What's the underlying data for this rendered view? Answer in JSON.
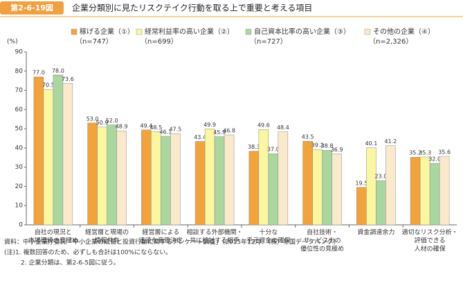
{
  "chart_data": {
    "type": "bar",
    "figure_label": "第2-6-19図",
    "title": "企業分類別に見たリスクテイク行動を取る上で重要と考える項目",
    "ylabel": "(%)",
    "categories": [
      [
        "自社の現況と",
        "市場環境の見極め"
      ],
      [
        "経営層と現場の",
        "情報共有"
      ],
      [
        "経営層による",
        "迅速な意思決定"
      ],
      [
        "相談する外部機関・",
        "共に検討する相手"
      ],
      [
        "十分な",
        "手元資金の確保"
      ],
      [
        "自社技術・",
        "サービス力の",
        "優位性の見極め"
      ],
      [
        "資金調達余力"
      ],
      [
        "適切なリスク分析・",
        "評価できる",
        "人材の確保"
      ]
    ],
    "series": [
      {
        "name": "稼げる企業（①）",
        "n_label": "（n=747）",
        "color": "#f2a33a",
        "values": [
          77.0,
          53.0,
          49.4,
          43.4,
          38.3,
          43.5,
          19.5,
          35.2
        ],
        "value_labels": [
          "77.0",
          "53.0",
          "49.4",
          "43.4",
          "38.3",
          "43.5",
          "19.5",
          "35.2"
        ]
      },
      {
        "name": "経常利益率の高い企業（②）",
        "n_label": "（n=699）",
        "color": "#fbf6a0",
        "values": [
          70.5,
          50.9,
          48.5,
          49.9,
          49.6,
          39.2,
          40.1,
          35.3
        ],
        "value_labels": [
          "70.5",
          "50.9",
          "48.5",
          "49.9",
          "49.6",
          "39.2",
          "40.1",
          "35.3"
        ]
      },
      {
        "name": "自己資本比率の高い企業（③）",
        "n_label": "（n=727）",
        "color": "#a9d79f",
        "values": [
          78.0,
          52.0,
          46.1,
          45.9,
          37.0,
          38.8,
          23.0,
          32.0
        ],
        "value_labels": [
          "78.0",
          "52.0",
          "46.1",
          "45.9",
          "37.0",
          "38.8",
          "23.0",
          "32.0"
        ]
      },
      {
        "name": "その他の企業（④）",
        "n_label": "（n=2,326）",
        "color": "#fbe9cc",
        "values": [
          73.6,
          48.9,
          47.5,
          46.8,
          48.4,
          36.9,
          41.2,
          35.6
        ],
        "value_labels": [
          "73.6",
          "48.9",
          "47.5",
          "46.8",
          "48.4",
          "36.9",
          "41.2",
          "35.6"
        ]
      }
    ],
    "ylim": [
      0,
      90
    ],
    "yticks": [
      0,
      10,
      20,
      30,
      40,
      50,
      60,
      70,
      80,
      90
    ],
    "source": "資料：中小企業庁委託「中小企業の成長と投資行動に関するアンケート調査」（2015年12月、（株）帝国データバンク）",
    "notes": [
      "(注)1. 複数回答のため、必ずしも合計は100%にならない。",
      "2. 企業分類は、第2-6-5図に従う。"
    ]
  }
}
